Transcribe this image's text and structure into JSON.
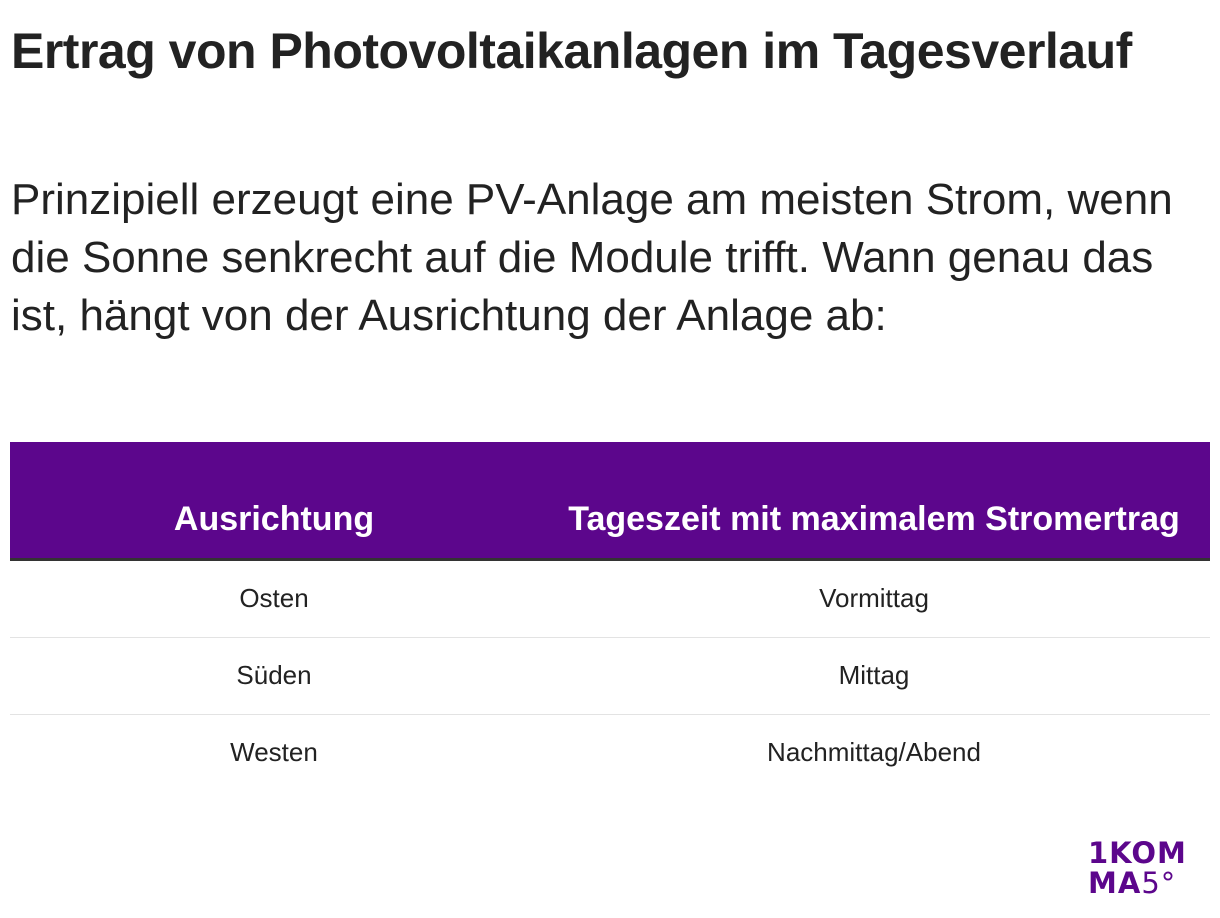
{
  "header": {
    "title": "Ertrag von Photovoltaikanlagen im Tagesverlauf",
    "subtitle": "Prinzipiell erzeugt eine PV-Anlage am meisten Strom, wenn die Sonne senkrecht auf die Module trifft. Wann genau das ist, hängt von der Ausrichtung der Anlage ab:"
  },
  "table": {
    "columns": [
      "Ausrichtung",
      "Tageszeit mit maximalem Stromertrag"
    ],
    "rows": [
      [
        "Osten",
        "Vormittag"
      ],
      [
        "Süden",
        "Mittag"
      ],
      [
        "Westen",
        "Nachmittag/Abend"
      ]
    ],
    "header_color": "#5c068c"
  },
  "logo": {
    "line1": "1KOM",
    "line2_a": "MA",
    "line2_b": "5°",
    "color": "#5c068c"
  }
}
